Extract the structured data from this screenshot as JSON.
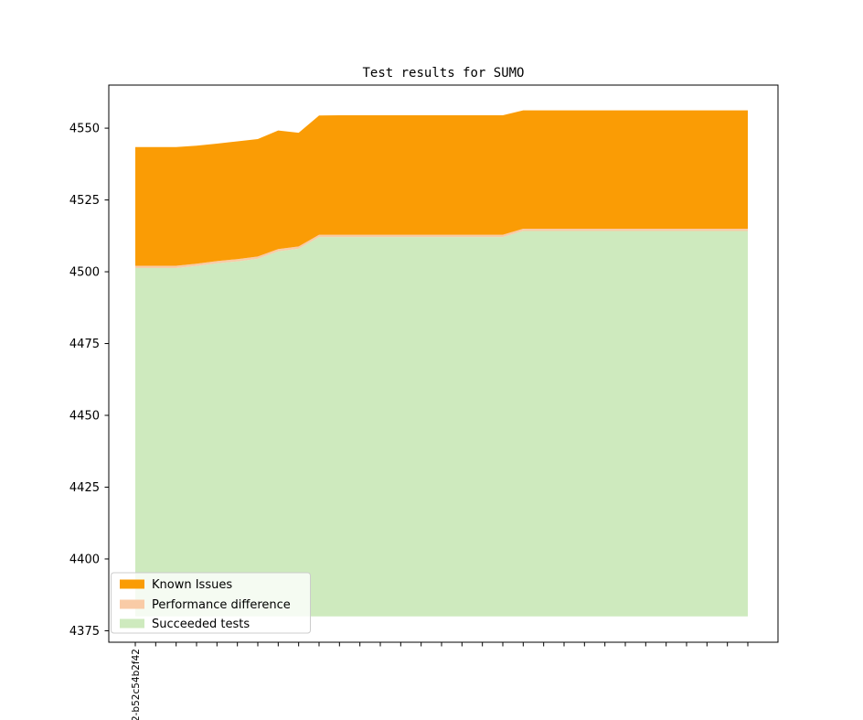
{
  "chart_data": {
    "type": "area",
    "title": "Test results for SUMO",
    "xlabel": "",
    "ylabel": "",
    "grid": false,
    "n_points": 31,
    "x_tick_labels_visible": [
      "2-b52c54b2f42"
    ],
    "yticks": [
      4375,
      4400,
      4425,
      4450,
      4475,
      4500,
      4525,
      4550
    ],
    "ylim": [
      4371,
      4565
    ],
    "baseline": 4380,
    "series": [
      {
        "name": "Succeeded tests",
        "color": "#ceeabe",
        "top": [
          4501.3,
          4501.3,
          4501.3,
          4502.0,
          4502.9,
          4503.6,
          4504.5,
          4507.1,
          4508.0,
          4512.1,
          4512.1,
          4512.1,
          4512.1,
          4512.1,
          4512.1,
          4512.1,
          4512.1,
          4512.1,
          4512.1,
          4514.2,
          4514.2,
          4514.2,
          4514.2,
          4514.2,
          4514.2,
          4514.2,
          4514.2,
          4514.2,
          4514.2,
          4514.2,
          4514.2
        ]
      },
      {
        "name": "Performance difference",
        "color": "#f9cba6",
        "top": [
          4502.1,
          4502.1,
          4502.1,
          4502.8,
          4503.7,
          4504.4,
          4505.3,
          4507.9,
          4508.8,
          4512.9,
          4512.9,
          4512.9,
          4512.9,
          4512.9,
          4512.9,
          4512.9,
          4512.9,
          4512.9,
          4512.9,
          4515.0,
          4515.0,
          4515.0,
          4515.0,
          4515.0,
          4515.0,
          4515.0,
          4515.0,
          4515.0,
          4515.0,
          4515.0,
          4515.0
        ]
      },
      {
        "name": "Known Issues",
        "color": "#fa9c05",
        "top": [
          4543.4,
          4543.4,
          4543.4,
          4543.9,
          4544.6,
          4545.4,
          4546.2,
          4549.2,
          4548.4,
          4554.4,
          4554.5,
          4554.5,
          4554.5,
          4554.5,
          4554.5,
          4554.5,
          4554.5,
          4554.5,
          4554.5,
          4556.2,
          4556.2,
          4556.2,
          4556.2,
          4556.2,
          4556.2,
          4556.2,
          4556.2,
          4556.2,
          4556.2,
          4556.2,
          4556.2
        ]
      }
    ],
    "legend": {
      "position": "lower left",
      "entries": [
        {
          "label": "Known Issues",
          "color": "#fa9c05"
        },
        {
          "label": "Performance difference",
          "color": "#f9cba6"
        },
        {
          "label": "Succeeded tests",
          "color": "#ceeabe"
        }
      ]
    }
  }
}
